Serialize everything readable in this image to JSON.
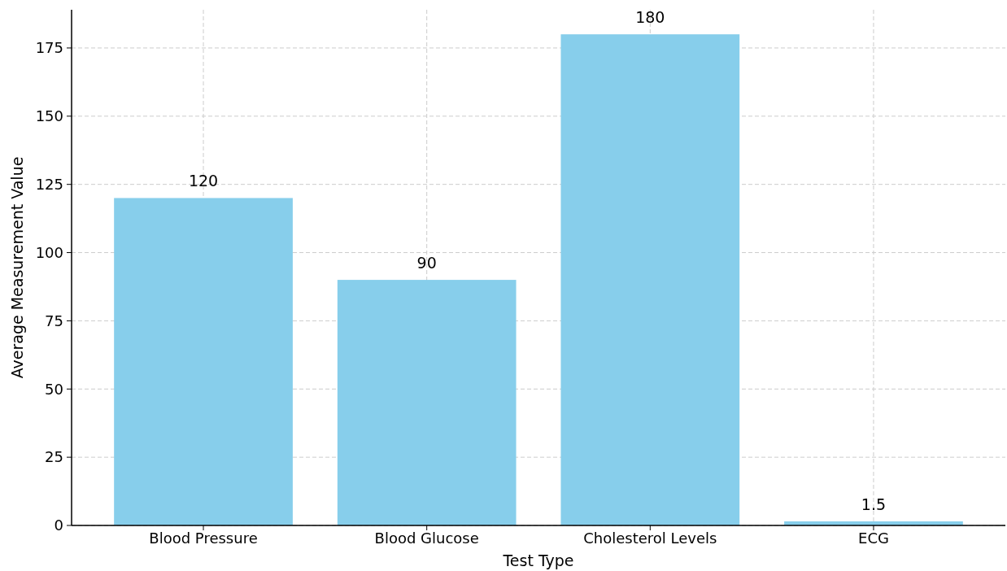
{
  "chart_data": {
    "type": "bar",
    "xlabel": "Test Type",
    "ylabel": "Average Measurement Value",
    "categories": [
      "Blood Pressure",
      "Blood Glucose",
      "Cholesterol Levels",
      "ECG"
    ],
    "values": [
      120,
      90,
      180,
      1.5
    ],
    "color": "#87ceeb",
    "ylim": [
      0,
      189
    ],
    "yticks": [
      0,
      25,
      50,
      75,
      100,
      125,
      150,
      175
    ],
    "grid": true,
    "data_labels": true
  }
}
